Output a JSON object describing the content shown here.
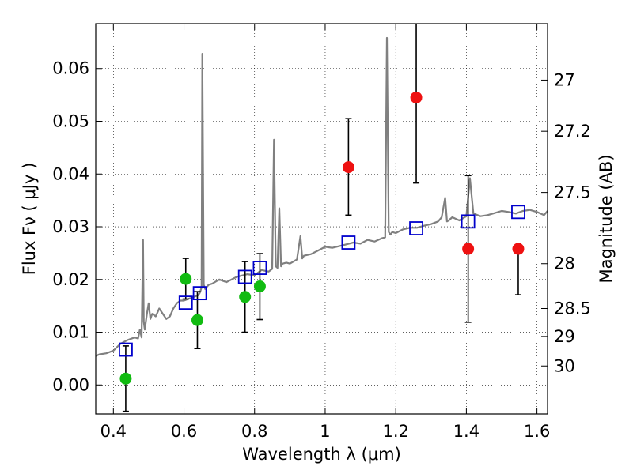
{
  "chart_data": {
    "type": "scatter",
    "xlabel": "Wavelength  λ (μm)",
    "ylabel": "Flux  Fν  ( μJy )",
    "y2label": "Magnitude (AB)",
    "xlim": [
      0.35,
      1.63
    ],
    "ylim": [
      -0.0055,
      0.0685
    ],
    "x_ticks": [
      0.4,
      0.6,
      0.8,
      1.0,
      1.2,
      1.4,
      1.6
    ],
    "x_tick_labels": [
      "0.4",
      "0.6",
      "0.8",
      "1",
      "1.2",
      "1.4",
      "1.6"
    ],
    "y_ticks": [
      0.0,
      0.01,
      0.02,
      0.03,
      0.04,
      0.05,
      0.06
    ],
    "y_tick_labels": [
      "0.00",
      "0.01",
      "0.02",
      "0.03",
      "0.04",
      "0.05",
      "0.06"
    ],
    "y2_ticks": [
      {
        "label": "27",
        "flux": 0.0578
      },
      {
        "label": "27.2",
        "flux": 0.0481
      },
      {
        "label": "27.5",
        "flux": 0.0365
      },
      {
        "label": "28",
        "flux": 0.023
      },
      {
        "label": "28.5",
        "flux": 0.0145
      },
      {
        "label": "29",
        "flux": 0.0092
      },
      {
        "label": "30",
        "flux": 0.0036
      }
    ],
    "grid": true,
    "colors": {
      "spectrum": "#808080",
      "green_points": "#11bb11",
      "red_points": "#ee1111",
      "model_squares": "#0000cc",
      "error_bars": "#000000"
    },
    "spectrum": {
      "x": [
        0.35,
        0.36,
        0.38,
        0.4,
        0.42,
        0.44,
        0.46,
        0.47,
        0.475,
        0.48,
        0.484,
        0.486,
        0.489,
        0.495,
        0.5,
        0.505,
        0.51,
        0.52,
        0.53,
        0.54,
        0.55,
        0.56,
        0.57,
        0.58,
        0.59,
        0.6,
        0.62,
        0.64,
        0.645,
        0.65,
        0.652,
        0.656,
        0.66,
        0.665,
        0.67,
        0.68,
        0.7,
        0.72,
        0.75,
        0.78,
        0.8,
        0.82,
        0.84,
        0.85,
        0.855,
        0.86,
        0.865,
        0.87,
        0.875,
        0.88,
        0.89,
        0.9,
        0.92,
        0.93,
        0.935,
        0.94,
        0.96,
        0.98,
        1.0,
        1.02,
        1.05,
        1.08,
        1.1,
        1.12,
        1.14,
        1.16,
        1.17,
        1.175,
        1.18,
        1.185,
        1.19,
        1.2,
        1.22,
        1.24,
        1.26,
        1.28,
        1.3,
        1.32,
        1.33,
        1.34,
        1.345,
        1.35,
        1.36,
        1.38,
        1.4,
        1.41,
        1.42,
        1.44,
        1.46,
        1.48,
        1.5,
        1.52,
        1.54,
        1.56,
        1.58,
        1.6,
        1.62,
        1.63
      ],
      "y": [
        0.0055,
        0.0058,
        0.006,
        0.0065,
        0.0078,
        0.0085,
        0.009,
        0.0088,
        0.0105,
        0.009,
        0.0275,
        0.012,
        0.0105,
        0.0135,
        0.0155,
        0.0125,
        0.0135,
        0.013,
        0.0145,
        0.0135,
        0.0125,
        0.013,
        0.0145,
        0.0155,
        0.016,
        0.016,
        0.0165,
        0.017,
        0.0175,
        0.0185,
        0.0628,
        0.019,
        0.0182,
        0.0186,
        0.019,
        0.0192,
        0.02,
        0.0195,
        0.0205,
        0.021,
        0.0208,
        0.0218,
        0.0215,
        0.022,
        0.0465,
        0.0225,
        0.0222,
        0.0335,
        0.0225,
        0.023,
        0.0232,
        0.023,
        0.0238,
        0.0282,
        0.024,
        0.0245,
        0.0248,
        0.0255,
        0.0262,
        0.026,
        0.0265,
        0.027,
        0.0268,
        0.0275,
        0.0272,
        0.0278,
        0.028,
        0.0658,
        0.029,
        0.0285,
        0.029,
        0.0288,
        0.0295,
        0.0298,
        0.0298,
        0.0302,
        0.0305,
        0.031,
        0.0318,
        0.0355,
        0.031,
        0.0312,
        0.0318,
        0.0312,
        0.032,
        0.0392,
        0.0325,
        0.032,
        0.0322,
        0.0326,
        0.033,
        0.0328,
        0.0325,
        0.033,
        0.0332,
        0.0328,
        0.0322,
        0.033
      ]
    },
    "green_points": [
      {
        "x": 0.435,
        "y": 0.0012,
        "err_lo": 0.0062,
        "err_hi": 0.0062
      },
      {
        "x": 0.605,
        "y": 0.0201,
        "err_lo": 0.0038,
        "err_hi": 0.0039
      },
      {
        "x": 0.638,
        "y": 0.0123,
        "err_lo": 0.0054,
        "err_hi": 0.0054
      },
      {
        "x": 0.773,
        "y": 0.0167,
        "err_lo": 0.0067,
        "err_hi": 0.0067
      },
      {
        "x": 0.815,
        "y": 0.0187,
        "err_lo": 0.0063,
        "err_hi": 0.0062
      }
    ],
    "red_points": [
      {
        "x": 1.066,
        "y": 0.0413,
        "err_lo": 0.0091,
        "err_hi": 0.0092
      },
      {
        "x": 1.258,
        "y": 0.0545,
        "err_lo": 0.0162,
        "err_hi": 0.016
      },
      {
        "x": 1.405,
        "y": 0.0258,
        "err_lo": 0.0139,
        "err_hi": 0.0139
      },
      {
        "x": 1.547,
        "y": 0.0258,
        "err_lo": 0.0087,
        "err_hi": 0.0
      }
    ],
    "model_squares": [
      {
        "x": 0.435,
        "y": 0.0067
      },
      {
        "x": 0.605,
        "y": 0.0156
      },
      {
        "x": 0.645,
        "y": 0.0174
      },
      {
        "x": 0.773,
        "y": 0.0205
      },
      {
        "x": 0.815,
        "y": 0.0222
      },
      {
        "x": 1.066,
        "y": 0.027
      },
      {
        "x": 1.258,
        "y": 0.0297
      },
      {
        "x": 1.405,
        "y": 0.031
      },
      {
        "x": 1.547,
        "y": 0.0328
      }
    ]
  }
}
